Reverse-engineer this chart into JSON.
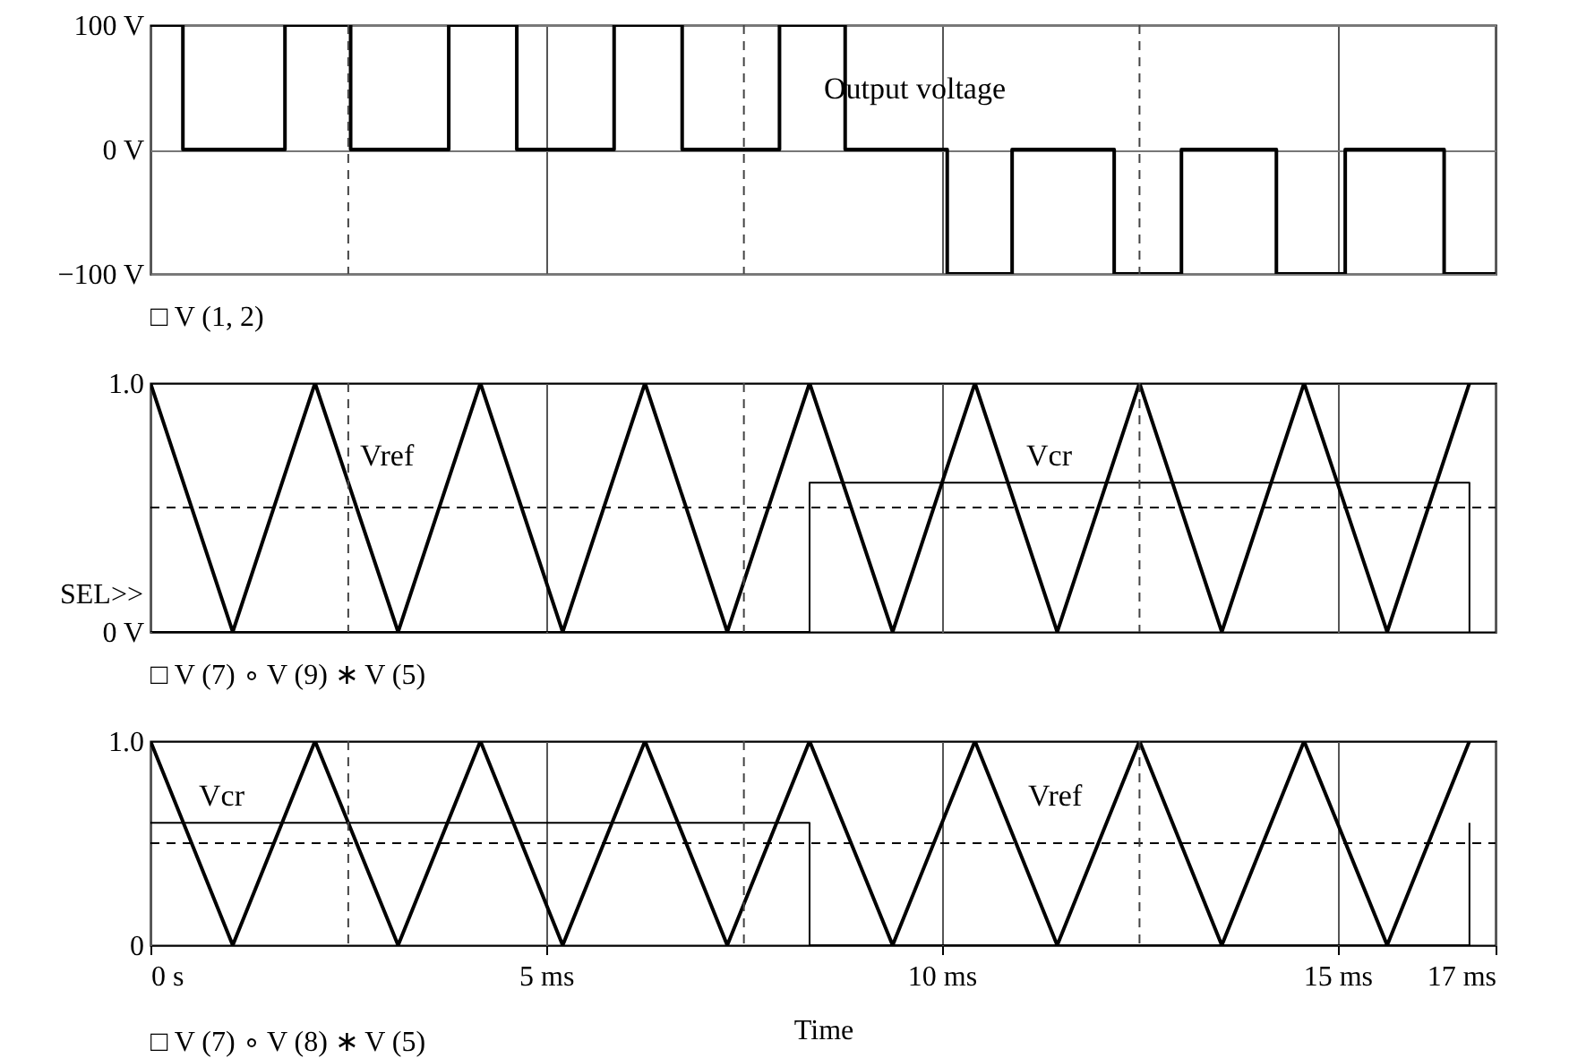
{
  "chart_data": [
    {
      "type": "step",
      "xlim": [
        0,
        17
      ],
      "xticks": [
        0,
        5,
        10,
        15,
        17
      ],
      "ylim": [
        -100,
        100
      ],
      "yticks": [
        {
          "value": -100,
          "label": "−100 V"
        },
        {
          "value": 0,
          "label": "0 V"
        },
        {
          "value": 100,
          "label": "100 V"
        }
      ],
      "grid": true,
      "tick_labels": "y",
      "series": [
        {
          "color": "#000000",
          "x": [
            0,
            0.41,
            1.7,
            2.53,
            3.77,
            4.63,
            5.86,
            6.72,
            7.95,
            8.78,
            10.07,
            10.89,
            12.18,
            13.03,
            14.23,
            15.1,
            16.35,
            17
          ],
          "values": [
            100,
            0,
            100,
            0,
            100,
            0,
            100,
            0,
            100,
            0,
            -100,
            0,
            -100,
            0,
            -100,
            0,
            -100,
            -100
          ]
        }
      ],
      "ref_lines": [
        {
          "axis": "x",
          "value": 2.5,
          "line_style": "dashed",
          "color": "#444444"
        },
        {
          "axis": "x",
          "value": 7.5,
          "line_style": "dashed",
          "color": "#444444"
        },
        {
          "axis": "x",
          "value": 12.5,
          "line_style": "dashed",
          "color": "#444444"
        }
      ],
      "annotations": [
        "□ V (1, 2)",
        "Output voltage"
      ]
    },
    {
      "type": "line",
      "xlim": [
        0,
        17
      ],
      "xticks": [
        0,
        5,
        10,
        15,
        17
      ],
      "ylim": [
        0,
        1
      ],
      "yticks": [
        {
          "value": 0,
          "label": "0 V"
        },
        {
          "value": 1,
          "label": "1.0"
        }
      ],
      "grid": "x",
      "tick_labels": "y",
      "series": [
        {
          "color": "#000000",
          "x": [
            0,
            1.04,
            2.08,
            3.13,
            4.17,
            5.21,
            6.25,
            7.29,
            8.33,
            9.38,
            10.42,
            11.46,
            12.5,
            13.54,
            14.58,
            15.63,
            16.67
          ],
          "values": [
            1,
            0,
            1,
            0,
            1,
            0,
            1,
            0,
            1,
            0,
            1,
            0,
            1,
            0,
            1,
            0,
            1
          ]
        },
        {
          "color": "#000000",
          "line_style": "dashed",
          "x": [
            0,
            17
          ],
          "values": [
            0.5,
            0.5
          ]
        },
        {
          "color": "#000000",
          "x": [
            0,
            8.33,
            8.33,
            16.67,
            16.67
          ],
          "values": [
            0,
            0,
            0.6,
            0.6,
            0
          ]
        }
      ],
      "ref_lines": [
        {
          "axis": "x",
          "value": 2.5,
          "line_style": "dashed",
          "color": "#444444"
        },
        {
          "axis": "x",
          "value": 7.5,
          "line_style": "dashed",
          "color": "#444444"
        },
        {
          "axis": "x",
          "value": 12.5,
          "line_style": "dashed",
          "color": "#444444"
        }
      ],
      "annotations": [
        "□ V (7)  ∘ V (9) ∗ V (5)",
        "SEL>>",
        "Vref",
        "Vcr"
      ]
    },
    {
      "type": "line",
      "xlim": [
        0,
        17
      ],
      "xticks": [
        {
          "value": 0,
          "label": "0 s"
        },
        {
          "value": 5,
          "label": "5 ms"
        },
        {
          "value": 10,
          "label": "10 ms"
        },
        {
          "value": 15,
          "label": "15 ms"
        },
        {
          "value": 17,
          "label": "17 ms"
        }
      ],
      "ylim": [
        0,
        1
      ],
      "yticks": [
        0,
        {
          "value": 1,
          "label": "1.0"
        }
      ],
      "grid": "x",
      "xlabel": "Time",
      "series": [
        {
          "color": "#000000",
          "x": [
            0,
            1.04,
            2.08,
            3.13,
            4.17,
            5.21,
            6.25,
            7.29,
            8.33,
            9.38,
            10.42,
            11.46,
            12.5,
            13.54,
            14.58,
            15.63,
            16.67
          ],
          "values": [
            1,
            0,
            1,
            0,
            1,
            0,
            1,
            0,
            1,
            0,
            1,
            0,
            1,
            0,
            1,
            0,
            1
          ]
        },
        {
          "color": "#000000",
          "line_style": "dashed",
          "x": [
            0,
            17
          ],
          "values": [
            0.5,
            0.5
          ]
        },
        {
          "color": "#000000",
          "x": [
            0,
            8.33,
            8.33,
            16.67,
            16.67
          ],
          "values": [
            0.6,
            0.6,
            0,
            0,
            0.6
          ]
        }
      ],
      "ref_lines": [
        {
          "axis": "x",
          "value": 2.5,
          "line_style": "dashed",
          "color": "#444444"
        },
        {
          "axis": "x",
          "value": 7.5,
          "line_style": "dashed",
          "color": "#444444"
        },
        {
          "axis": "x",
          "value": 12.5,
          "line_style": "dashed",
          "color": "#444444"
        }
      ],
      "annotations": [
        "□ V (7)  ∘ V (8) ∗ V (5)",
        "Vcr",
        "Vref"
      ]
    }
  ]
}
